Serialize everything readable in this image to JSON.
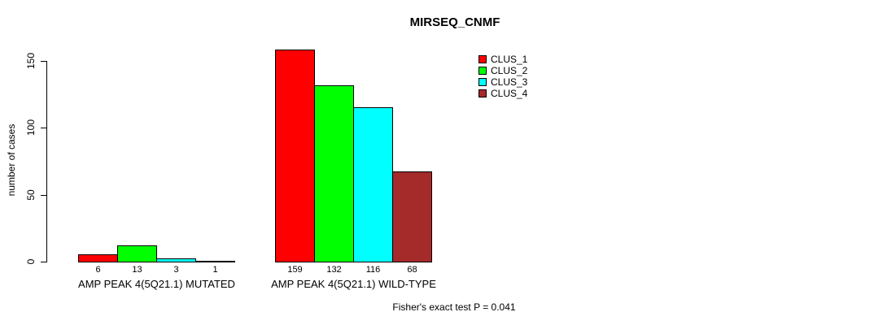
{
  "chart_data": {
    "type": "bar",
    "title": "MIRSEQ_CNMF",
    "ylabel": "number of cases",
    "xlabel": "",
    "ylim": [
      0,
      160
    ],
    "yticks": [
      0,
      50,
      100,
      150
    ],
    "grid": false,
    "legend_position": "top-right",
    "series": [
      {
        "name": "CLUS_1",
        "color": "#FF0000"
      },
      {
        "name": "CLUS_2",
        "color": "#00FF00"
      },
      {
        "name": "CLUS_3",
        "color": "#00FFFF"
      },
      {
        "name": "CLUS_4",
        "color": "#A52A2A"
      }
    ],
    "groups": [
      {
        "label": "AMP PEAK 4(5Q21.1) MUTATED",
        "values": [
          6,
          13,
          3,
          1
        ]
      },
      {
        "label": "AMP PEAK 4(5Q21.1) WILD-TYPE",
        "values": [
          159,
          132,
          116,
          68
        ]
      }
    ],
    "bar_border_color": "#000000",
    "annotation": "Fisher's exact test P = 0.041"
  }
}
